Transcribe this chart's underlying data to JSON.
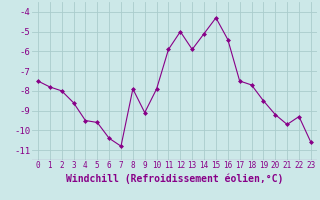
{
  "x": [
    0,
    1,
    2,
    3,
    4,
    5,
    6,
    7,
    8,
    9,
    10,
    11,
    12,
    13,
    14,
    15,
    16,
    17,
    18,
    19,
    20,
    21,
    22,
    23
  ],
  "y": [
    -7.5,
    -7.8,
    -8.0,
    -8.6,
    -9.5,
    -9.6,
    -10.4,
    -10.8,
    -7.9,
    -9.1,
    -7.9,
    -5.9,
    -5.0,
    -5.9,
    -5.1,
    -4.3,
    -5.4,
    -7.5,
    -7.7,
    -8.5,
    -9.2,
    -9.7,
    -9.3,
    -10.6
  ],
  "line_color": "#880088",
  "marker": "D",
  "marker_size": 2.0,
  "bg_color": "#cce8e8",
  "grid_color": "#aacccc",
  "xlabel": "Windchill (Refroidissement éolien,°C)",
  "xlabel_fontsize": 7,
  "xlim": [
    -0.5,
    23.5
  ],
  "ylim": [
    -11.5,
    -3.5
  ],
  "yticks": [
    -11,
    -10,
    -9,
    -8,
    -7,
    -6,
    -5,
    -4
  ],
  "xtick_fontsize": 5.5,
  "ytick_fontsize": 6.5,
  "tick_color": "#880088",
  "line_width": 0.8
}
